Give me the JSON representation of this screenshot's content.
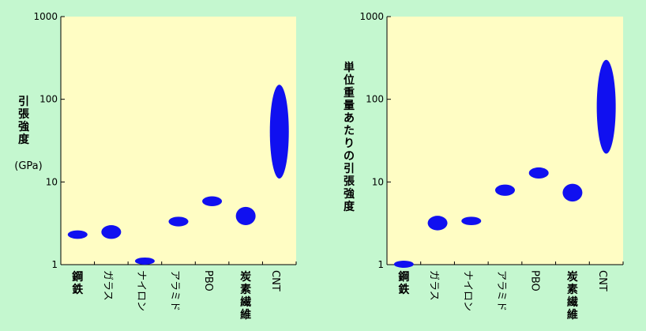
{
  "colors": {
    "background": "#c4f7cf",
    "plot_background": "#fffdc4",
    "marker": "#1010f0",
    "axis": "#000000"
  },
  "chart_data": [
    {
      "type": "scatter",
      "y_scale": "log",
      "ylim": [
        1,
        1000
      ],
      "y_ticks": [
        "1",
        "10",
        "100",
        "1000"
      ],
      "ylabel": "引張強度",
      "ylabel_unit": "(GPa)",
      "xlabel": "",
      "categories": [
        "鋼鉄",
        "ガラス",
        "ナイロン",
        "アラミド",
        "PBO",
        "炭素繊維",
        "CNT"
      ],
      "series": [
        {
          "values": [
            {
              "low": 2.05,
              "high": 2.6
            },
            {
              "low": 2.05,
              "high": 3.0
            },
            {
              "low": 1.0,
              "high": 1.22
            },
            {
              "low": 2.9,
              "high": 3.8
            },
            {
              "low": 5.1,
              "high": 6.7
            },
            {
              "low": 3.0,
              "high": 5.0
            },
            {
              "low": 11.0,
              "high": 150
            }
          ]
        }
      ]
    },
    {
      "type": "scatter",
      "y_scale": "log",
      "ylim": [
        1,
        1000
      ],
      "y_ticks": [
        "1",
        "10",
        "100",
        "1000"
      ],
      "ylabel": "単位重量あたりの引張強度",
      "xlabel": "",
      "categories": [
        "鋼鉄",
        "ガラス",
        "ナイロン",
        "アラミド",
        "PBO",
        "炭素繊維",
        "CNT"
      ],
      "series": [
        {
          "values": [
            {
              "low": 0.93,
              "high": 1.1
            },
            {
              "low": 2.6,
              "high": 3.9
            },
            {
              "low": 3.0,
              "high": 3.8
            },
            {
              "low": 6.8,
              "high": 9.3
            },
            {
              "low": 11.0,
              "high": 15.0
            },
            {
              "low": 5.8,
              "high": 9.5
            },
            {
              "low": 22.0,
              "high": 300
            }
          ]
        }
      ]
    }
  ]
}
